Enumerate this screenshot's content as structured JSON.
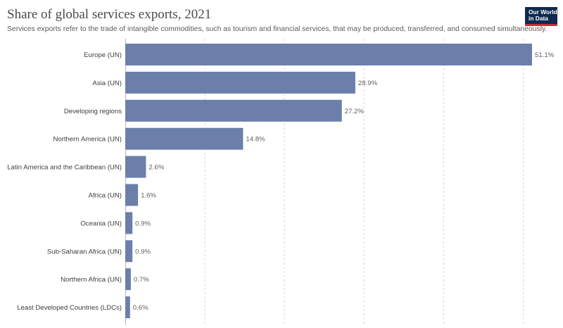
{
  "header": {
    "title": "Share of global services exports, 2021",
    "subtitle": "Services exports refer to the trade of intangible commodities, such as tourism and financial services, that may be produced, transferred, and consumed simultaneously."
  },
  "logo": {
    "line1": "Our World",
    "line2": "in Data"
  },
  "colors": {
    "bar": "#6b7faa",
    "grid": "#d6d6d6",
    "label": "#3d3d3d",
    "value": "#5e5e5e",
    "logo_bg": "#0e2a4f",
    "logo_accent": "#cd2b3a"
  },
  "chart_data": {
    "type": "bar",
    "orientation": "horizontal",
    "categories": [
      "Europe (UN)",
      "Asia (UN)",
      "Developing regions",
      "Northern America (UN)",
      "Latin America and the Caribbean (UN)",
      "Africa (UN)",
      "Oceania (UN)",
      "Sub-Saharan Africa (UN)",
      "Northern Africa (UN)",
      "Least Developed Countries (LDCs)"
    ],
    "values": [
      51.1,
      28.9,
      27.2,
      14.8,
      2.6,
      1.6,
      0.9,
      0.9,
      0.7,
      0.6
    ],
    "value_labels": [
      "51.1%",
      "28.9%",
      "27.2%",
      "14.8%",
      "2.6%",
      "1.6%",
      "0.9%",
      "0.9%",
      "0.7%",
      "0.6%"
    ],
    "xlim": [
      0,
      51.1
    ],
    "grid": true,
    "value_unit": "%"
  }
}
